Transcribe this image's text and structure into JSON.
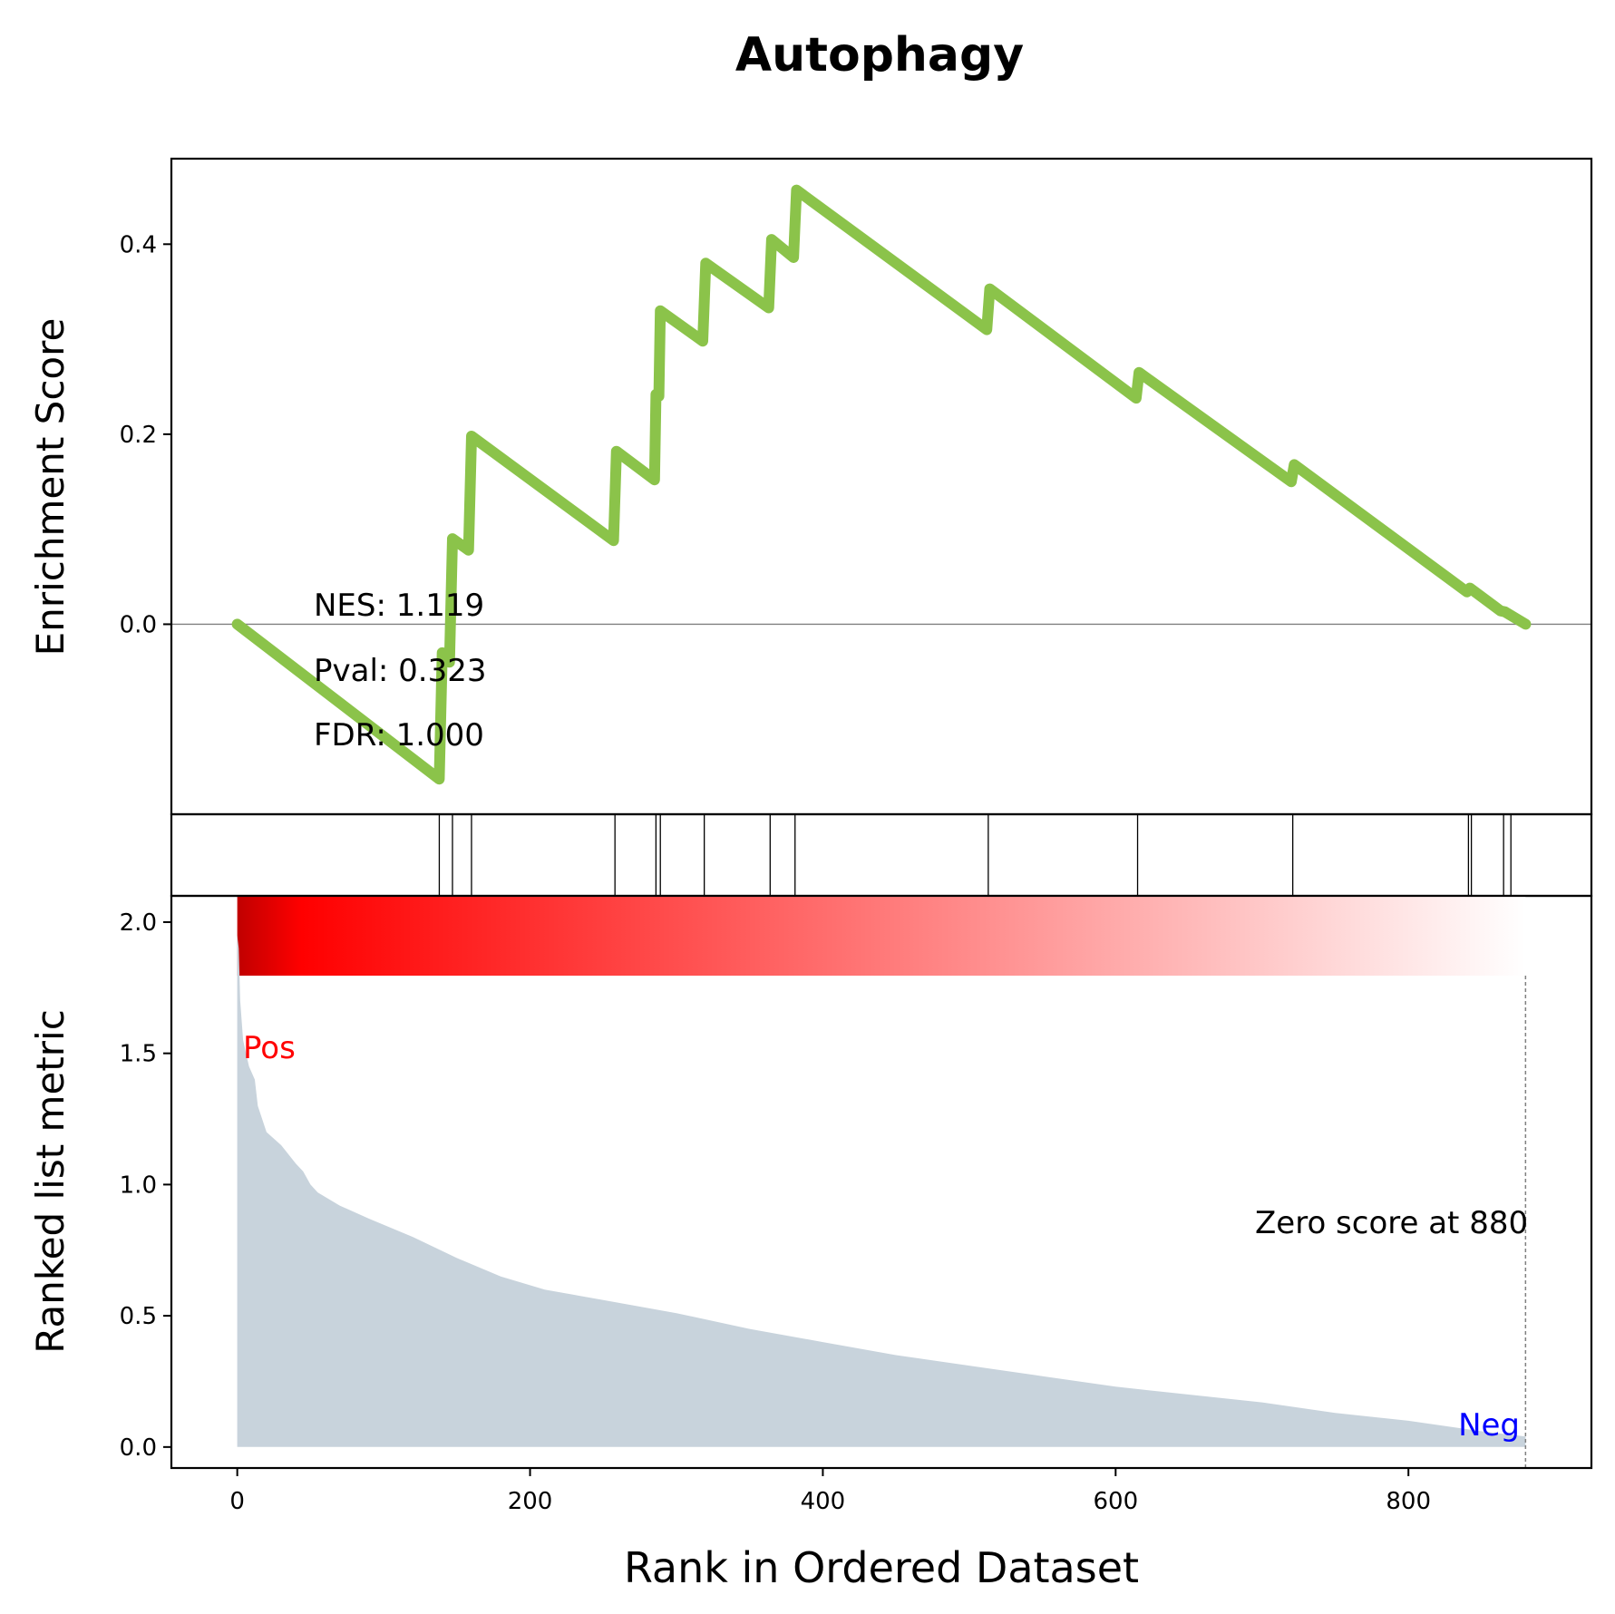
{
  "chart_data": {
    "type": "line",
    "title": "Autophagy",
    "es_panel": {
      "ylabel": "Enrichment Score",
      "ylim": [
        -0.2,
        0.49
      ],
      "yticks": [
        0.0,
        0.2,
        0.4
      ],
      "ytick_labels": [
        "0.0",
        "0.2",
        "0.4"
      ],
      "line_color": "#8bc34a",
      "zero_line_color": "#808080",
      "points": [
        [
          0,
          0.0
        ],
        [
          138,
          -0.163
        ],
        [
          140,
          -0.03
        ],
        [
          145,
          -0.04
        ],
        [
          147,
          0.09
        ],
        [
          158,
          0.078
        ],
        [
          160,
          0.198
        ],
        [
          257,
          0.088
        ],
        [
          259,
          0.182
        ],
        [
          285,
          0.152
        ],
        [
          286,
          0.242
        ],
        [
          288,
          0.24
        ],
        [
          289,
          0.33
        ],
        [
          318,
          0.298
        ],
        [
          320,
          0.38
        ],
        [
          363,
          0.333
        ],
        [
          365,
          0.405
        ],
        [
          380,
          0.386
        ],
        [
          382,
          0.457
        ],
        [
          512,
          0.31
        ],
        [
          514,
          0.353
        ],
        [
          614,
          0.238
        ],
        [
          616,
          0.265
        ],
        [
          720,
          0.15
        ],
        [
          722,
          0.168
        ],
        [
          840,
          0.034
        ],
        [
          842,
          0.038
        ],
        [
          863,
          0.014
        ],
        [
          866,
          0.013
        ],
        [
          880,
          0.0
        ]
      ],
      "stats": [
        "NES: 1.119",
        "Pval: 0.323",
        "FDR: 1.000"
      ]
    },
    "hits": [
      138,
      147,
      160,
      258,
      286,
      289,
      319,
      364,
      381,
      513,
      615,
      721,
      841,
      843,
      865,
      870
    ],
    "heatmap": {
      "start_color": "#c00000",
      "peak_color": "#ff0000",
      "end_color": "#ffffff"
    },
    "rank_panel": {
      "ylabel": "Ranked list metric",
      "ylim": [
        -0.08,
        2.1
      ],
      "yticks": [
        0.0,
        0.5,
        1.0,
        1.5,
        2.0
      ],
      "ytick_labels": [
        "0.0",
        "0.5",
        "1.0",
        "1.5",
        "2.0"
      ],
      "fill_color": "#c8d3dc",
      "pos_label": "Pos",
      "pos_color": "#ff0000",
      "neg_label": "Neg",
      "neg_color": "#0000ff",
      "zero_label": "Zero score at 880",
      "zero_rank": 880,
      "metric_points": [
        [
          0,
          1.95
        ],
        [
          1,
          1.9
        ],
        [
          2,
          1.7
        ],
        [
          4,
          1.55
        ],
        [
          8,
          1.45
        ],
        [
          12,
          1.4
        ],
        [
          14,
          1.3
        ],
        [
          20,
          1.2
        ],
        [
          30,
          1.15
        ],
        [
          40,
          1.08
        ],
        [
          45,
          1.05
        ],
        [
          50,
          1.0
        ],
        [
          55,
          0.97
        ],
        [
          70,
          0.92
        ],
        [
          90,
          0.87
        ],
        [
          120,
          0.8
        ],
        [
          150,
          0.72
        ],
        [
          180,
          0.65
        ],
        [
          210,
          0.6
        ],
        [
          250,
          0.56
        ],
        [
          300,
          0.51
        ],
        [
          350,
          0.45
        ],
        [
          400,
          0.4
        ],
        [
          450,
          0.35
        ],
        [
          500,
          0.31
        ],
        [
          550,
          0.27
        ],
        [
          600,
          0.23
        ],
        [
          650,
          0.2
        ],
        [
          700,
          0.17
        ],
        [
          750,
          0.13
        ],
        [
          800,
          0.1
        ],
        [
          850,
          0.06
        ],
        [
          880,
          0.04
        ]
      ]
    },
    "xlabel": "Rank in Ordered Dataset",
    "xlim": [
      -45,
      925
    ],
    "xticks": [
      0,
      200,
      400,
      600,
      800
    ],
    "xtick_labels": [
      "0",
      "200",
      "400",
      "600",
      "800"
    ]
  }
}
